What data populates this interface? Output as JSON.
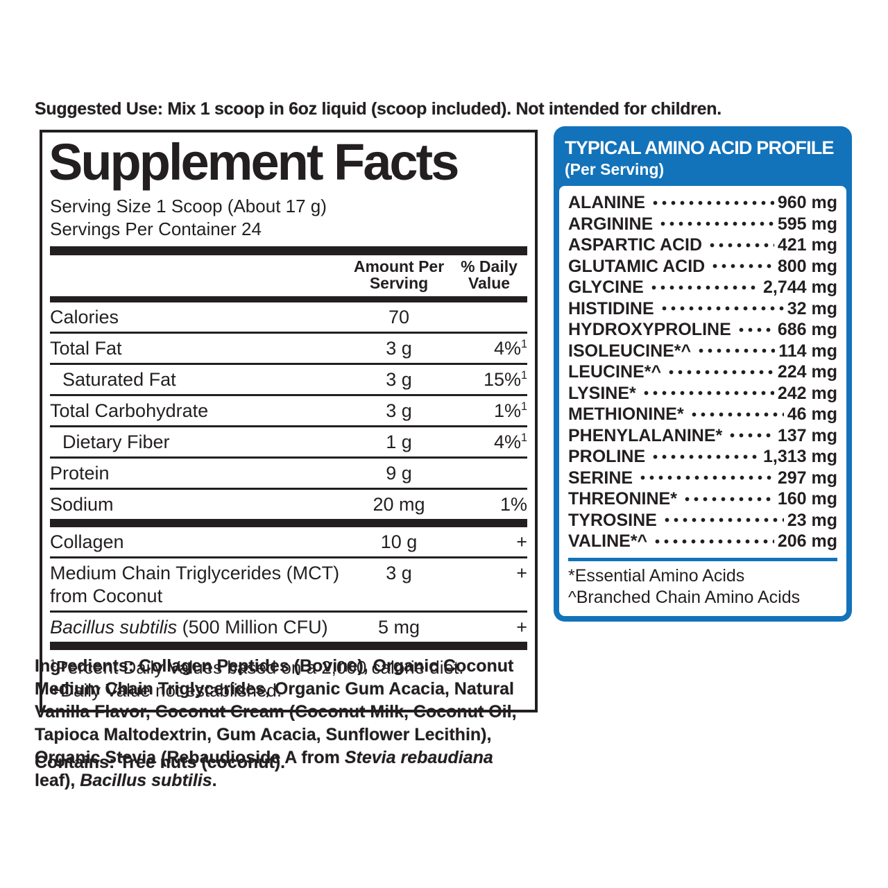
{
  "colors": {
    "text": "#231f20",
    "accent_blue": "#1273ba",
    "background": "#ffffff"
  },
  "suggested_use": "Suggested Use: Mix 1 scoop in 6oz liquid (scoop included). Not intended for children.",
  "facts": {
    "title": "Supplement Facts",
    "serving_size": "Serving Size 1 Scoop (About 17 g)",
    "servings_per_container": "Servings Per Container 24",
    "header": {
      "amount": "Amount Per\nServing",
      "daily_value": "% Daily\nValue"
    },
    "rows": [
      {
        "name": "Calories",
        "amount": "70",
        "dv": "",
        "dv_sup": ""
      },
      {
        "name": "Total Fat",
        "amount": "3 g",
        "dv": "4%",
        "dv_sup": "1"
      },
      {
        "name": "Saturated Fat",
        "amount": "3 g",
        "dv": "15%",
        "dv_sup": "1"
      },
      {
        "name": "Total Carbohydrate",
        "amount": "3 g",
        "dv": "1%",
        "dv_sup": "1"
      },
      {
        "name": "Dietary Fiber",
        "amount": "1 g",
        "dv": "4%",
        "dv_sup": "1"
      },
      {
        "name": "Protein",
        "amount": "9 g",
        "dv": "",
        "dv_sup": ""
      },
      {
        "name": "Sodium",
        "amount": "20 mg",
        "dv": "1%",
        "dv_sup": ""
      }
    ],
    "extra_rows": [
      {
        "name": "Collagen",
        "amount": "10 g",
        "dv": "+"
      },
      {
        "name": "Medium Chain Triglycerides (MCT) from Coconut",
        "amount": "3 g",
        "dv": "+"
      },
      {
        "name_italic": "Bacillus subtilis",
        "name_rest": " (500 Million CFU)",
        "amount": "5 mg",
        "dv": "+"
      }
    ],
    "footnote_sup": "1",
    "footnote_dv": "Percent Daily Values based on a 2,000 calorie diet.",
    "footnote_plus": "+Daily Value not established."
  },
  "amino": {
    "title": "TYPICAL AMINO ACID PROFILE",
    "subtitle": "(Per Serving)",
    "rows": [
      {
        "name": "ALANINE",
        "value": "960 mg"
      },
      {
        "name": "ARGININE",
        "value": "595 mg"
      },
      {
        "name": "ASPARTIC ACID",
        "value": "421 mg"
      },
      {
        "name": "GLUTAMIC ACID",
        "value": "800 mg"
      },
      {
        "name": "GLYCINE",
        "value": "2,744 mg"
      },
      {
        "name": "HISTIDINE",
        "value": "32 mg"
      },
      {
        "name": "HYDROXYPROLINE",
        "value": "686 mg"
      },
      {
        "name": "ISOLEUCINE*^",
        "value": "114 mg"
      },
      {
        "name": "LEUCINE*^",
        "value": "224 mg"
      },
      {
        "name": "LYSINE*",
        "value": "242 mg"
      },
      {
        "name": "METHIONINE*",
        "value": "46 mg"
      },
      {
        "name": "PHENYLALANINE*",
        "value": "137 mg"
      },
      {
        "name": "PROLINE",
        "value": "1,313 mg"
      },
      {
        "name": "SERINE",
        "value": "297 mg"
      },
      {
        "name": "THREONINE*",
        "value": "160 mg"
      },
      {
        "name": "TYROSINE",
        "value": "23 mg"
      },
      {
        "name": "VALINE*^",
        "value": "206 mg"
      }
    ],
    "footnote_essential": "*Essential Amino Acids",
    "footnote_branched": "^Branched Chain Amino Acids"
  },
  "ingredients": {
    "label": "Ingredients:",
    "part1": " Collagen Peptides (Bovine), Organic Coconut Medium Chain Triglycerides, Organic Gum Acacia, Natural Vanilla Flavor, Coconut Cream (Coconut Milk, Coconut Oil, Tapioca Maltodextrin, Gum Acacia, Sunflower Lecithin), Organic Stevia (Rebaudioside A from ",
    "italic1": "Stevia rebaudiana",
    "part2": " leaf), ",
    "italic2": "Bacillus subtilis",
    "part3": "."
  },
  "contains": {
    "label": "Contains:",
    "text": " Tree nuts (coconut)."
  }
}
